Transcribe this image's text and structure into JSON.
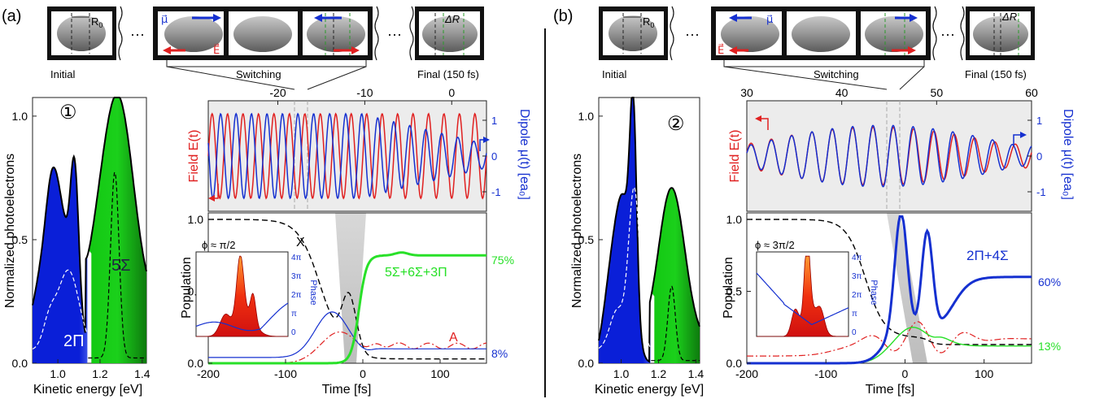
{
  "panel_a": {
    "label": "(a)",
    "strip": {
      "initial": "Initial",
      "switching": "Switching",
      "final": "Final (150 fs)",
      "r0": "R",
      "r0_sub": "0",
      "dr": "ΔR",
      "mu": "μ⃗",
      "efield": "E⃗",
      "dots": "···"
    },
    "spectrum": {
      "marker": "①",
      "ylabel": "Normalized photoelectrons",
      "xlabel": "Kinetic energy [eV]",
      "yticks": [
        "0.0",
        "0.5",
        "1.0"
      ],
      "xticks": [
        "1.0",
        "1.2",
        "1.4"
      ],
      "band_blue": "2Π",
      "band_green": "5Σ"
    },
    "field": {
      "top_ticks": [
        "-20",
        "-10",
        "0"
      ],
      "ylabel_left": "Field E(t)",
      "ylabel_right": "Dipole μ(t) [ea₀]",
      "right_ticks": [
        "1",
        "0",
        "-1"
      ]
    },
    "population": {
      "ylabel": "Population",
      "xlabel": "Time [fs]",
      "yticks": [
        "0.0",
        "0.5",
        "1.0"
      ],
      "xticks": [
        "-200",
        "-100",
        "0",
        "100"
      ],
      "label_x": "X",
      "label_a": "A",
      "label_main": "5Σ+6Σ+3Π",
      "pct_green": "75%",
      "pct_blue": "8%",
      "inset_phi": "ϕ ≈ π/2",
      "inset_phase": "Phase",
      "inset_ticks": [
        "4π",
        "3π",
        "2π",
        "π",
        "0"
      ]
    }
  },
  "panel_b": {
    "label": "(b)",
    "strip": {
      "initial": "Initial",
      "switching": "Switching",
      "final": "Final (150 fs)",
      "r0": "R",
      "r0_sub": "0",
      "dr": "ΔR",
      "mu": "μ⃗",
      "efield": "E⃗",
      "dots": "···"
    },
    "spectrum": {
      "marker": "②",
      "ylabel": "Normalized photoelectrons",
      "xlabel": "Kinetic energy [eV]",
      "yticks": [
        "0.0",
        "0.5",
        "1.0"
      ],
      "xticks": [
        "1.0",
        "1.2",
        "1.4"
      ]
    },
    "field": {
      "top_ticks": [
        "30",
        "40",
        "50",
        "60"
      ],
      "ylabel_left": "Field E(t)",
      "ylabel_right": "Dipole μ(t) [ea₀]",
      "right_ticks": [
        "1",
        "0",
        "-1"
      ]
    },
    "population": {
      "ylabel": "Population",
      "xlabel": "Time [fs]",
      "yticks": [
        "0.0",
        "0.5",
        "1.0"
      ],
      "xticks": [
        "-200",
        "-100",
        "0",
        "100"
      ],
      "label_main": "2Π+4Σ",
      "pct_blue": "60%",
      "pct_green": "13%",
      "inset_phi": "ϕ ≈ 3π/2",
      "inset_phase": "Phase",
      "inset_ticks": [
        "4π",
        "3π",
        "2π",
        "π",
        "0"
      ]
    }
  },
  "colors": {
    "field": "#e02020",
    "dipole": "#1530d0",
    "blue_fill": "#0a1fd8",
    "green_fill": "#1bd01b",
    "green_line": "#28e028",
    "panel_bg": "#ececec"
  }
}
